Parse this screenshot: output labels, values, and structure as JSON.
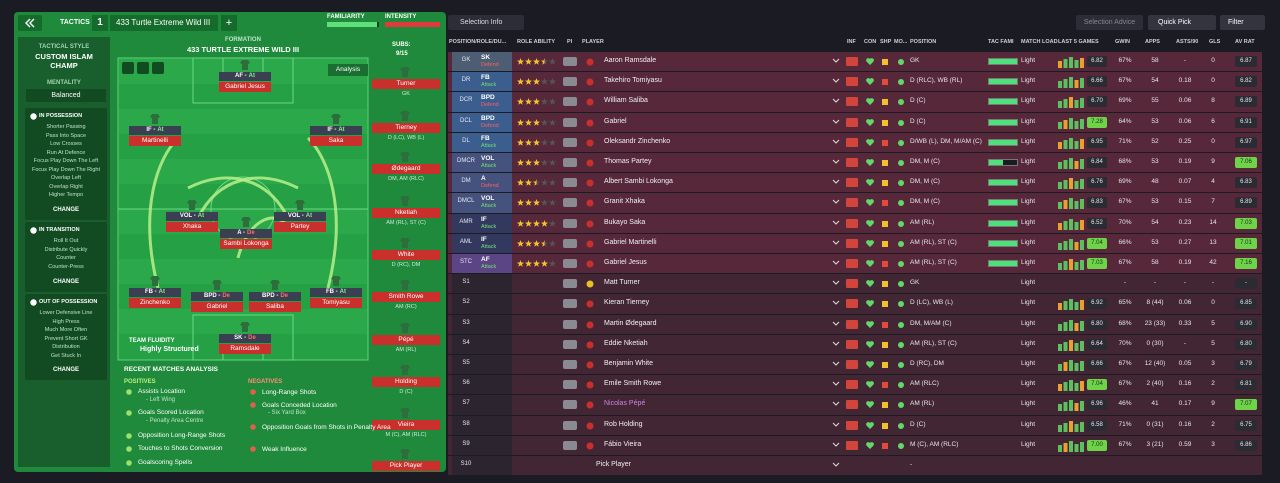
{
  "header": {
    "tactics": "TACTICS",
    "slot": "1",
    "tactic_name": "433 Turtle Extreme Wild III",
    "add": "+",
    "familiarity": "FAMILIARITY",
    "intensity": "INTENSITY"
  },
  "sidebar": {
    "style_label": "TACTICAL STYLE",
    "style": "CUSTOM ISLAM CHAMP",
    "mentality_label": "MENTALITY",
    "mentality": "Balanced",
    "phases": [
      {
        "title": "IN POSSESSION",
        "items": [
          "Shorter Passing",
          "Pass Into Space",
          "Low Crosses",
          "Run At Defence",
          "Focus Play Down The Left",
          "Focus Play Down The Right",
          "Overlap Left",
          "Overlap Right",
          "Higher Tempo"
        ],
        "button": "CHANGE"
      },
      {
        "title": "IN TRANSITION",
        "items": [
          "Roll It Out",
          "Distribute Quickly",
          "Counter",
          "Counter-Press"
        ],
        "button": "CHANGE"
      },
      {
        "title": "OUT OF POSSESSION",
        "items": [
          "Lower Defensive Line",
          "High Press",
          "Much More Often",
          "Prevent Short GK",
          "Distribution",
          "Get Stuck In"
        ],
        "button": "CHANGE"
      }
    ]
  },
  "pitch": {
    "label": "FORMATION",
    "name": "433 TURTLE EXTREME WILD III",
    "subs_label": "SUBS:",
    "subs_count": "9/15",
    "analysis": "Analysis",
    "fluidity_label": "TEAM FLUIDITY",
    "fluidity": "Highly Structured",
    "players": [
      {
        "role": "AF -",
        "duty": "At",
        "name": "Gabriel Jesus"
      },
      {
        "role": "IF -",
        "duty": "At",
        "name": "Martinelli"
      },
      {
        "role": "IF -",
        "duty": "At",
        "name": "Saka"
      },
      {
        "role": "VOL -",
        "duty": "At",
        "name": "Xhaka"
      },
      {
        "role": "A -",
        "duty": "De",
        "name": "Sambi Lokonga"
      },
      {
        "role": "VOL -",
        "duty": "At",
        "name": "Partey"
      },
      {
        "role": "FB -",
        "duty": "At",
        "name": "Zinchenko"
      },
      {
        "role": "BPD -",
        "duty": "De",
        "name": "Gabriel"
      },
      {
        "role": "BPD -",
        "duty": "De",
        "name": "Saliba"
      },
      {
        "role": "FB -",
        "duty": "At",
        "name": "Tomiyasu"
      },
      {
        "role": "SK -",
        "duty": "De",
        "name": "Ramsdale"
      }
    ]
  },
  "bench": [
    {
      "name": "Turner",
      "position": "GK"
    },
    {
      "name": "Tierney",
      "position": "D (LC), WB (L)"
    },
    {
      "name": "Ødegaard",
      "position": "DM, AM (RLC)"
    },
    {
      "name": "Nketiah",
      "position": "AM (RL), ST (C)"
    },
    {
      "name": "White",
      "position": "D (RC), DM"
    },
    {
      "name": "Smith Rowe",
      "position": "AM (RC)"
    },
    {
      "name": "Pépé",
      "position": "AM (RL)"
    },
    {
      "name": "Holding",
      "position": "D (C)"
    },
    {
      "name": "Vieira",
      "position": "M (C), AM (RLC)"
    },
    {
      "name": "Pick Player"
    }
  ],
  "analysis": {
    "title": "RECENT MATCHES ANALYSIS",
    "positives_label": "POSITIVES",
    "positives": [
      {
        "text": "Assists Location",
        "detail": "- Left Wing"
      },
      {
        "text": "Goals Scored Location",
        "detail": "- Penalty Area Centre"
      },
      {
        "text": "Opposition Long-Range Shots"
      },
      {
        "text": "Touches to Shots Conversion"
      },
      {
        "text": "Goalscoring Spells"
      }
    ],
    "negatives_label": "NEGATIVES",
    "negatives": [
      {
        "text": "Long-Range Shots"
      },
      {
        "text": "Goals Conceded Location",
        "detail": "- Six Yard Box"
      },
      {
        "text": "Opposition Goals from Shots in Penalty Area"
      },
      {
        "text": "Weak Influence"
      }
    ]
  },
  "toolbar": {
    "selection_info": "Selection Info",
    "selection_advice": "Selection Advice",
    "quick_pick": "Quick Pick",
    "filter": "Filter"
  },
  "table": {
    "columns": [
      "POSITION/ROLE/DU...",
      "ROLE ABILITY",
      "PI",
      "PLAYER",
      "INF",
      "CON",
      "SHP",
      "MO...",
      "POSITION",
      "TAC FAMI",
      "MATCH LOAD",
      "LAST 5 GAMES",
      "GWIN",
      "APPS",
      "ASTS/90",
      "GLS",
      "AV RAT"
    ],
    "rows": [
      {
        "slot": "GK",
        "role": "SK",
        "duty": "Defend",
        "stars": 3.5,
        "role_color": "#4d5d73",
        "name": "Aaron Ramsdale",
        "position": "GK",
        "load": "Light",
        "form": "6.82",
        "gwin": "67%",
        "apps": "58",
        "asts": "-",
        "gls": "0",
        "rating": "6.87"
      },
      {
        "slot": "DR",
        "role": "FB",
        "duty": "Attack",
        "stars": 3,
        "role_color": "#3b5e8f",
        "name": "Takehiro Tomiyasu",
        "position": "D (RLC), WB (RL)",
        "load": "Light",
        "form": "6.66",
        "gwin": "67%",
        "apps": "54",
        "asts": "0.18",
        "gls": "0",
        "rating": "6.82"
      },
      {
        "slot": "DCR",
        "role": "BPD",
        "duty": "Defend",
        "stars": 3,
        "role_color": "#3b5e8f",
        "name": "William Saliba",
        "position": "D (C)",
        "load": "Light",
        "form": "6.70",
        "gwin": "69%",
        "apps": "55",
        "asts": "0.06",
        "gls": "8",
        "rating": "6.89"
      },
      {
        "slot": "DCL",
        "role": "BPD",
        "duty": "Defend",
        "stars": 3,
        "role_color": "#3b5e8f",
        "name": "Gabriel",
        "position": "D (C)",
        "load": "Light",
        "form": "7.28",
        "gwin": "64%",
        "apps": "53",
        "asts": "0.06",
        "gls": "6",
        "rating": "6.91"
      },
      {
        "slot": "DL",
        "role": "FB",
        "duty": "Attack",
        "stars": 3,
        "role_color": "#3b5e8f",
        "name": "Oleksandr Zinchenko",
        "position": "D/WB (L), DM, M/AM (C)",
        "load": "Light",
        "form": "6.95",
        "gwin": "71%",
        "apps": "52",
        "asts": "0.25",
        "gls": "0",
        "rating": "6.97"
      },
      {
        "slot": "DMCR",
        "role": "VOL",
        "duty": "Attack",
        "stars": 3,
        "role_color": "#45527e",
        "name": "Thomas Partey",
        "position": "DM, M (C)",
        "load": "Light",
        "form": "6.84",
        "gwin": "68%",
        "apps": "53",
        "asts": "0.19",
        "gls": "9",
        "rating": "7.06"
      },
      {
        "slot": "DM",
        "role": "A",
        "duty": "Defend",
        "stars": 2.5,
        "role_color": "#45527e",
        "name": "Albert Sambi Lokonga",
        "position": "DM, M (C)",
        "load": "Light",
        "form": "6.76",
        "gwin": "69%",
        "apps": "48",
        "asts": "0.07",
        "gls": "4",
        "rating": "6.83"
      },
      {
        "slot": "DMCL",
        "role": "VOL",
        "duty": "Attack",
        "stars": 3,
        "role_color": "#45527e",
        "name": "Granit Xhaka",
        "position": "DM, M (C)",
        "load": "Light",
        "form": "6.83",
        "gwin": "67%",
        "apps": "53",
        "asts": "0.15",
        "gls": "7",
        "rating": "6.89"
      },
      {
        "slot": "AMR",
        "role": "IF",
        "duty": "Attack",
        "stars": 4,
        "role_color": "#33395e",
        "name": "Bukayo Saka",
        "position": "AM (RL)",
        "load": "Light",
        "form": "6.52",
        "gwin": "70%",
        "apps": "54",
        "asts": "0.23",
        "gls": "14",
        "rating": "7.03"
      },
      {
        "slot": "AML",
        "role": "IF",
        "duty": "Attack",
        "stars": 3.5,
        "role_color": "#33395e",
        "name": "Gabriel Martinelli",
        "position": "AM (RL), ST (C)",
        "load": "Light",
        "form": "7.04",
        "gwin": "66%",
        "apps": "53",
        "asts": "0.27",
        "gls": "13",
        "rating": "7.01"
      },
      {
        "slot": "STC",
        "role": "AF",
        "duty": "Attack",
        "stars": 4,
        "role_color": "#5c4584",
        "name": "Gabriel Jesus",
        "position": "AM (RL), ST (C)",
        "load": "Light",
        "form": "7.03",
        "gwin": "67%",
        "apps": "58",
        "asts": "0.19",
        "gls": "42",
        "rating": "7.16"
      },
      {
        "slot": "S1",
        "name": "Matt Turner",
        "position": "GK",
        "load": "Light",
        "gwin": "-",
        "apps": "-",
        "asts": "-",
        "gls": "-",
        "rating": "-"
      },
      {
        "slot": "S2",
        "name": "Kieran Tierney",
        "position": "D (LC), WB (L)",
        "load": "Light",
        "form": "6.92",
        "gwin": "65%",
        "apps": "8 (44)",
        "asts": "0.06",
        "gls": "0",
        "rating": "6.85"
      },
      {
        "slot": "S3",
        "name": "Martin Ødegaard",
        "position": "DM, M/AM (C)",
        "load": "Light",
        "form": "6.80",
        "gwin": "68%",
        "apps": "23 (33)",
        "asts": "0.33",
        "gls": "5",
        "rating": "6.90"
      },
      {
        "slot": "S4",
        "name": "Eddie Nketiah",
        "position": "AM (RL), ST (C)",
        "load": "Light",
        "form": "6.64",
        "gwin": "70%",
        "apps": "0 (30)",
        "asts": "-",
        "gls": "5",
        "rating": "6.80"
      },
      {
        "slot": "S5",
        "name": "Benjamin White",
        "position": "D (RC), DM",
        "load": "Light",
        "form": "6.66",
        "gwin": "67%",
        "apps": "12 (40)",
        "asts": "0.05",
        "gls": "3",
        "rating": "6.79"
      },
      {
        "slot": "S6",
        "name": "Emile Smith Rowe",
        "position": "AM (RLC)",
        "load": "Light",
        "form": "7.04",
        "gwin": "67%",
        "apps": "2 (40)",
        "asts": "0.16",
        "gls": "2",
        "rating": "6.81"
      },
      {
        "slot": "S7",
        "name": "Nicolas Pépé",
        "name_color": "#c985e6",
        "position": "AM (RL)",
        "load": "Light",
        "form": "6.96",
        "gwin": "46%",
        "apps": "41",
        "asts": "0.17",
        "gls": "9",
        "rating": "7.07"
      },
      {
        "slot": "S8",
        "name": "Rob Holding",
        "position": "D (C)",
        "load": "Light",
        "form": "6.58",
        "gwin": "71%",
        "apps": "0 (31)",
        "asts": "0.16",
        "gls": "2",
        "rating": "6.75"
      },
      {
        "slot": "S9",
        "name": "Fábio Vieira",
        "position": "M (C), AM (RLC)",
        "load": "Light",
        "form": "7.00",
        "gwin": "67%",
        "apps": "3 (21)",
        "asts": "0.59",
        "gls": "3",
        "rating": "6.86"
      },
      {
        "slot": "S10",
        "name": "Pick Player",
        "position": "-"
      }
    ]
  }
}
